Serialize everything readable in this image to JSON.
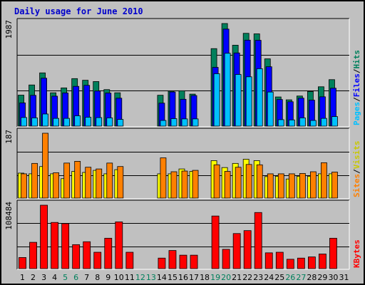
{
  "title": "Daily usage for June 2010",
  "colors": {
    "background": "#c0c0c0",
    "hits": "#00805c",
    "files": "#0000ff",
    "pages": "#00c0ff",
    "visits": "#ffff00",
    "sites": "#ff8000",
    "kbytes": "#ff0000",
    "title": "#0000cc",
    "weekend_label": "#00805c"
  },
  "chart_data": [
    {
      "type": "bar",
      "name": "hits-files-pages",
      "ylabel": "1987",
      "legend": [
        "Pages",
        "Files",
        "Hits"
      ],
      "categories": [
        "1",
        "2",
        "3",
        "4",
        "5",
        "6",
        "7",
        "8",
        "9",
        "10",
        "11",
        "12",
        "13",
        "14",
        "15",
        "16",
        "17",
        "18",
        "19",
        "20",
        "21",
        "22",
        "23",
        "24",
        "25",
        "26",
        "27",
        "28",
        "29",
        "30",
        "31"
      ],
      "weekend": [
        "5",
        "6",
        "12",
        "13",
        "19",
        "20",
        "26",
        "27"
      ],
      "ylim": [
        0,
        1987
      ],
      "series": [
        {
          "name": "Hits",
          "values": [
            600,
            797,
            1031,
            646,
            740,
            920,
            888,
            863,
            707,
            646,
            0,
            0,
            0,
            598,
            679,
            685,
            620,
            0,
            1501,
            1987,
            1567,
            1797,
            1787,
            1303,
            565,
            509,
            583,
            671,
            762,
            900,
            0
          ]
        },
        {
          "name": "Files",
          "values": [
            450,
            596,
            928,
            580,
            642,
            770,
            790,
            680,
            640,
            541,
            0,
            0,
            0,
            445,
            661,
            520,
            592,
            0,
            1138,
            1879,
            1417,
            1665,
            1662,
            1150,
            515,
            472,
            542,
            503,
            568,
            734,
            0
          ]
        },
        {
          "name": "Pages",
          "values": [
            167,
            160,
            235,
            150,
            150,
            200,
            172,
            165,
            160,
            130,
            0,
            0,
            0,
            110,
            145,
            140,
            140,
            0,
            1015,
            1411,
            1000,
            955,
            1112,
            660,
            125,
            120,
            160,
            110,
            150,
            185,
            0
          ]
        }
      ]
    },
    {
      "type": "bar",
      "name": "sites-visits",
      "ylabel": "187",
      "legend": [
        "Sites",
        "Visits"
      ],
      "categories": [
        "1",
        "2",
        "3",
        "4",
        "5",
        "6",
        "7",
        "8",
        "9",
        "10",
        "11",
        "12",
        "13",
        "14",
        "15",
        "16",
        "17",
        "18",
        "19",
        "20",
        "21",
        "22",
        "23",
        "24",
        "25",
        "26",
        "27",
        "28",
        "29",
        "30",
        "31"
      ],
      "ylim": [
        0,
        187
      ],
      "series": [
        {
          "name": "Visits",
          "values": [
            72,
            70,
            91,
            70,
            56,
            77,
            74,
            80,
            70,
            82,
            0,
            0,
            0,
            70,
            70,
            84,
            77,
            0,
            108,
            88,
            100,
            112,
            108,
            62,
            63,
            55,
            63,
            63,
            70,
            70,
            0
          ]
        },
        {
          "name": "Sites",
          "values": [
            70,
            100,
            187,
            73,
            101,
            106,
            89,
            84,
            101,
            91,
            0,
            0,
            0,
            116,
            76,
            78,
            80,
            0,
            96,
            77,
            89,
            97,
            96,
            70,
            70,
            70,
            71,
            76,
            102,
            75,
            0
          ]
        }
      ]
    },
    {
      "type": "bar",
      "name": "kbytes",
      "ylabel": "108484",
      "legend": [
        "KBytes"
      ],
      "categories": [
        "1",
        "2",
        "3",
        "4",
        "5",
        "6",
        "7",
        "8",
        "9",
        "10",
        "11",
        "12",
        "13",
        "14",
        "15",
        "16",
        "17",
        "18",
        "19",
        "20",
        "21",
        "22",
        "23",
        "24",
        "25",
        "26",
        "27",
        "28",
        "29",
        "30",
        "31"
      ],
      "ylim": [
        0,
        108484
      ],
      "series": [
        {
          "name": "KBytes",
          "values": [
            19000,
            45000,
            108484,
            79000,
            77000,
            41000,
            46000,
            28000,
            52000,
            80000,
            28000,
            0,
            0,
            18000,
            31000,
            23000,
            23000,
            0,
            90000,
            33000,
            60000,
            65000,
            96000,
            27000,
            28000,
            16000,
            18000,
            20000,
            25000,
            52000,
            0
          ]
        }
      ]
    }
  ]
}
